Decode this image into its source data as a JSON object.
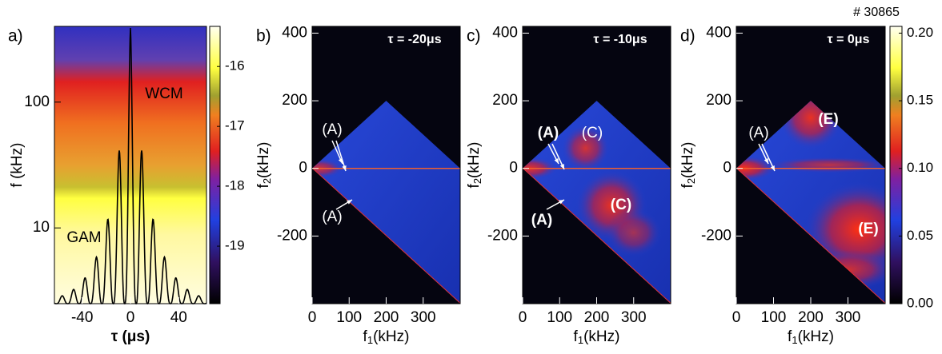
{
  "figure_label": "# 30865",
  "chart_data": [
    {
      "type": "heatmap",
      "panel_label": "a)",
      "x_label": "τ (μs)",
      "y_label": "f (kHz)",
      "xlim": [
        -63,
        63
      ],
      "xticks": [
        -40,
        0,
        40
      ],
      "ylim": [
        2.5,
        400
      ],
      "log_y": true,
      "yticks": [
        10,
        100
      ],
      "annotations": [
        "WCM",
        "GAM"
      ]
    },
    {
      "type": "bispectrum",
      "panel_label": "b)",
      "tau_label": "τ = -20μs",
      "x_label": [
        "f",
        "1",
        "(kHz)"
      ],
      "y_label": [
        "f",
        "2",
        "(kHz)"
      ],
      "xlim": [
        0,
        400
      ],
      "xticks": [
        0,
        100,
        200,
        300
      ],
      "ylim": [
        -400,
        420
      ],
      "yticks": [
        -200,
        0,
        200,
        400
      ],
      "annotations": [
        "(A)",
        "(A)"
      ]
    },
    {
      "type": "bispectrum",
      "panel_label": "c)",
      "tau_label": "τ = -10μs",
      "x_label": [
        "f",
        "1",
        "(kHz)"
      ],
      "y_label": [
        "f",
        "2",
        "(kHz)"
      ],
      "xlim": [
        0,
        400
      ],
      "xticks": [
        0,
        100,
        200,
        300
      ],
      "ylim": [
        -400,
        420
      ],
      "yticks": [
        -200,
        0,
        200,
        400
      ],
      "annotations": [
        "(A)",
        "(C)",
        "(A)",
        "(C)"
      ]
    },
    {
      "type": "bispectrum",
      "panel_label": "d)",
      "tau_label": "τ = 0μs",
      "x_label": [
        "f",
        "1",
        "(kHz)"
      ],
      "y_label": [
        "f",
        "2",
        "(kHz)"
      ],
      "xlim": [
        0,
        400
      ],
      "xticks": [
        0,
        100,
        200,
        300
      ],
      "ylim": [
        -400,
        420
      ],
      "yticks": [
        -200,
        0,
        200,
        400
      ],
      "annotations": [
        "(A)",
        "(E)",
        "(E)"
      ]
    },
    {
      "type": "colorbar",
      "ylim": [
        -19.96,
        -15.33
      ],
      "yticks": [
        -19,
        -18,
        -17,
        -16
      ]
    },
    {
      "type": "colorbar",
      "ylim": [
        0,
        0.205
      ],
      "yticks": [
        {
          "value": 0,
          "label": "0.00"
        },
        0.05,
        {
          "value": 0.1,
          "label": "0.10"
        },
        0.15,
        {
          "value": 0.2,
          "label": "0.20"
        }
      ]
    }
  ]
}
